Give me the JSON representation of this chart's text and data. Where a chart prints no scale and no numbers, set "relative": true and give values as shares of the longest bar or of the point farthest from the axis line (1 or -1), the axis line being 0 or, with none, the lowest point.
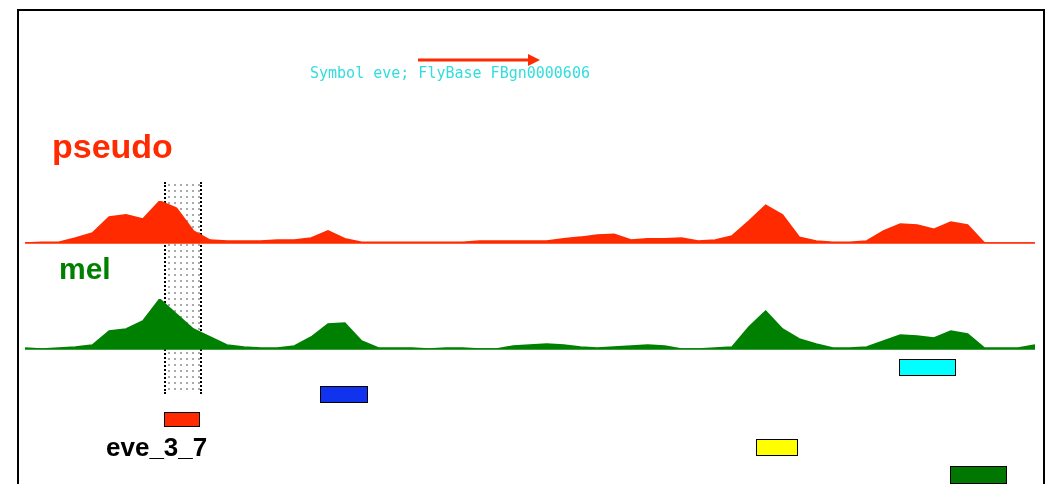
{
  "chart_data": [
    {
      "type": "area",
      "relative": true,
      "annotations": [
        "Symbol eve; FlyBase FBgn0000606"
      ],
      "categories": [
        null,
        null,
        null,
        null,
        null,
        null,
        null,
        null,
        null,
        null,
        null,
        null,
        null,
        null,
        null,
        null,
        null,
        null,
        null,
        null,
        null,
        null,
        null,
        null,
        null,
        null,
        null,
        null,
        null,
        null,
        null,
        null,
        null,
        null,
        null,
        null,
        null,
        null,
        null,
        null,
        null,
        null,
        null,
        null,
        null,
        null,
        null,
        null,
        null,
        null,
        null,
        null,
        null,
        null,
        null,
        null,
        null,
        null,
        null,
        null,
        null
      ],
      "series": [
        {
          "name": "pseudo",
          "color": "#ff2a00",
          "values": [
            0,
            0.02,
            0.02,
            0.12,
            0.24,
            0.62,
            0.67,
            0.57,
            1,
            0.83,
            0.29,
            0.07,
            0.05,
            0.05,
            0.05,
            0.07,
            0.07,
            0.12,
            0.29,
            0.1,
            0.02,
            0.02,
            0.02,
            0.02,
            0.02,
            0.02,
            0.02,
            0.05,
            0.05,
            0.05,
            0.05,
            0.05,
            0.1,
            0.14,
            0.19,
            0.21,
            0.07,
            0.1,
            0.1,
            0.12,
            0.05,
            0.07,
            0.17,
            0.52,
            0.9,
            0.67,
            0.14,
            0.05,
            0.02,
            0.02,
            0.05,
            0.29,
            0.45,
            0.43,
            0.33,
            0.5,
            0.43,
            0,
            0,
            0,
            0
          ]
        }
      ]
    },
    {
      "type": "area",
      "relative": true,
      "annotations": [
        "eve_3_7"
      ],
      "categories": [
        null,
        null,
        null,
        null,
        null,
        null,
        null,
        null,
        null,
        null,
        null,
        null,
        null,
        null,
        null,
        null,
        null,
        null,
        null,
        null,
        null,
        null,
        null,
        null,
        null,
        null,
        null,
        null,
        null,
        null,
        null,
        null,
        null,
        null,
        null,
        null,
        null,
        null,
        null,
        null,
        null,
        null,
        null,
        null,
        null,
        null,
        null,
        null,
        null,
        null,
        null,
        null,
        null,
        null,
        null,
        null,
        null,
        null,
        null,
        null,
        null
      ],
      "series": [
        {
          "name": "mel",
          "color": "#008000",
          "values": [
            0.02,
            0,
            0.02,
            0.04,
            0.08,
            0.36,
            0.4,
            0.56,
            1,
            0.7,
            0.4,
            0.24,
            0.08,
            0.04,
            0.02,
            0.02,
            0.06,
            0.24,
            0.5,
            0.52,
            0.16,
            0.02,
            0.02,
            0.02,
            0,
            0.02,
            0.02,
            0,
            0,
            0.06,
            0.08,
            0.1,
            0.08,
            0.04,
            0.02,
            0.04,
            0.06,
            0.08,
            0.06,
            0,
            0,
            0.02,
            0.04,
            0.44,
            0.76,
            0.4,
            0.2,
            0.1,
            0.02,
            0.02,
            0.04,
            0.16,
            0.28,
            0.26,
            0.22,
            0.36,
            0.3,
            0.02,
            0.02,
            0.02,
            0.08
          ]
        }
      ]
    }
  ]
}
